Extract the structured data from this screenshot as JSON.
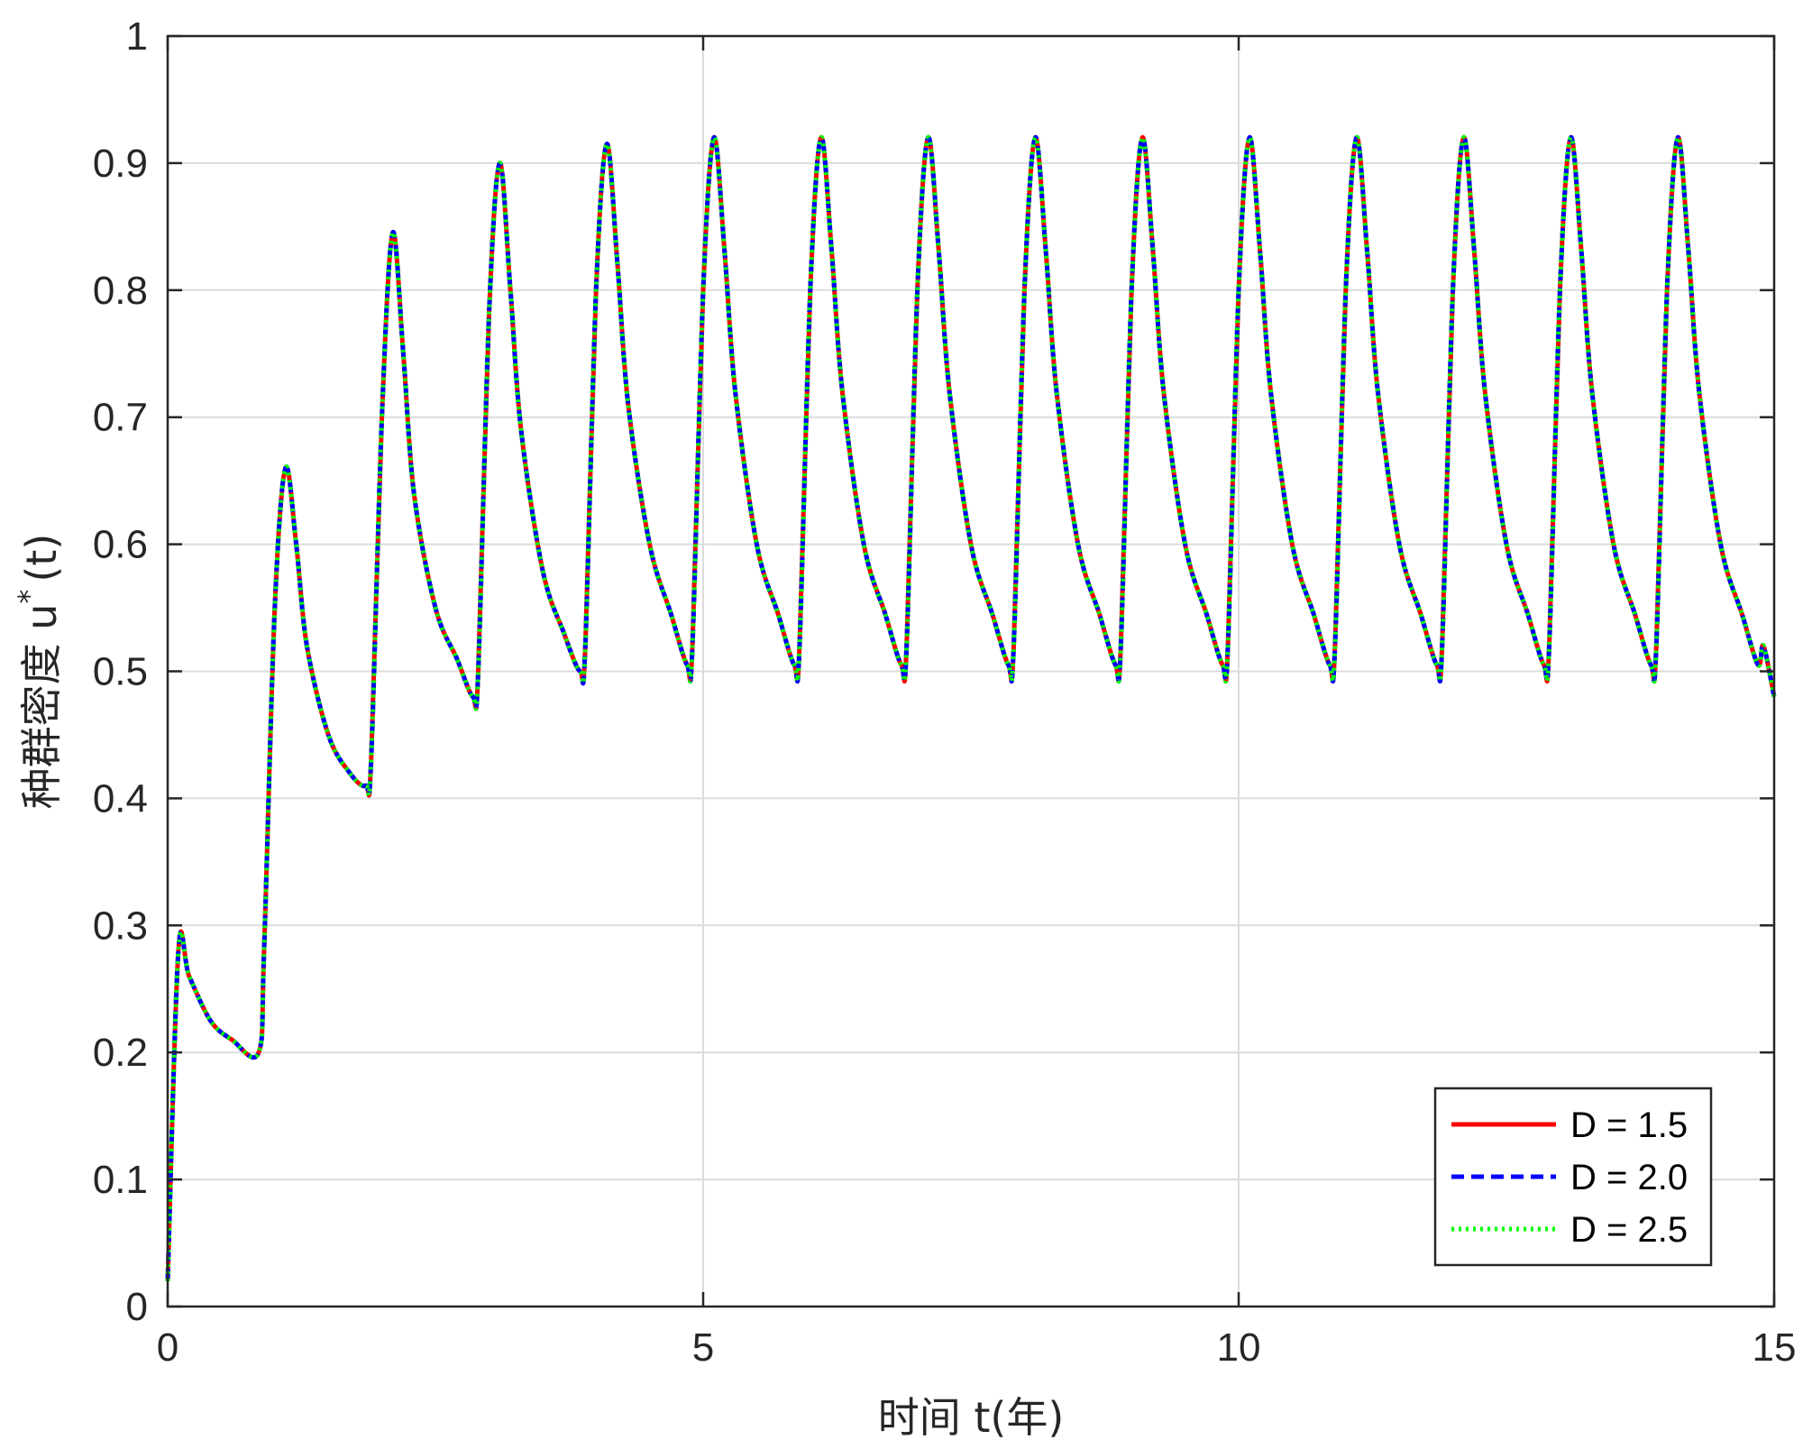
{
  "chart_data": {
    "type": "line",
    "xlabel": "时间 t(年)",
    "ylabel": "种群密度 u",
    "ylabel_superscript": "*",
    "ylabel_suffix": "(t)",
    "xlim": [
      0,
      15
    ],
    "ylim": [
      0,
      1
    ],
    "x_ticks": [
      0,
      5,
      10,
      15
    ],
    "y_ticks": [
      0,
      0.1,
      0.2,
      0.3,
      0.4,
      0.5,
      0.6,
      0.7,
      0.8,
      0.9,
      1
    ],
    "grid": true,
    "legend_position": "bottom-right",
    "x": [
      0.0,
      0.1,
      0.2,
      0.4,
      0.6,
      0.85,
      0.9,
      1.0,
      1.1,
      1.2,
      1.3,
      1.5,
      1.7,
      1.85,
      1.9,
      2.0,
      2.1,
      2.2,
      2.3,
      2.5,
      2.7,
      2.85,
      2.9,
      3.0,
      3.1,
      3.2,
      3.3,
      3.5,
      3.7,
      3.85,
      3.9,
      4.0,
      4.1,
      4.2,
      4.3,
      4.5,
      4.7,
      4.85,
      4.9,
      5.0,
      5.1,
      5.2,
      5.3,
      5.5,
      5.7,
      5.85,
      5.9,
      6.0,
      6.1,
      6.2,
      6.3,
      6.5,
      6.7,
      6.85,
      6.9,
      7.0,
      7.1,
      7.2,
      7.3,
      7.5,
      7.7,
      7.85,
      7.9,
      8.0,
      8.1,
      8.2,
      8.3,
      8.5,
      8.7,
      8.85,
      8.9,
      9.0,
      9.1,
      9.2,
      9.3,
      9.5,
      9.7,
      9.85,
      9.9,
      10.0,
      10.1,
      10.2,
      10.3,
      10.5,
      10.7,
      10.85,
      10.9,
      11.0,
      11.1,
      11.2,
      11.3,
      11.5,
      11.7,
      11.85,
      11.9,
      12.0,
      12.1,
      12.2,
      12.3,
      12.5,
      12.7,
      12.85,
      12.9,
      13.0,
      13.1,
      13.2,
      13.3,
      13.5,
      13.7,
      13.85,
      13.9,
      14.0,
      14.1,
      14.2,
      14.3,
      14.5,
      14.7,
      14.85,
      14.9,
      15.0
    ],
    "series": [
      {
        "name": "D = 1.5",
        "color": "#ff0000",
        "style": "solid"
      },
      {
        "name": "D = 2.0",
        "color": "#0000ff",
        "style": "dashed"
      },
      {
        "name": "D = 2.5",
        "color": "#00ff00",
        "style": "dotted"
      }
    ],
    "y": [
      0.02,
      0.28,
      0.26,
      0.225,
      0.21,
      0.2,
      0.28,
      0.55,
      0.66,
      0.6,
      0.52,
      0.45,
      0.42,
      0.41,
      0.43,
      0.7,
      0.845,
      0.75,
      0.64,
      0.55,
      0.51,
      0.48,
      0.5,
      0.78,
      0.9,
      0.8,
      0.69,
      0.58,
      0.53,
      0.5,
      0.52,
      0.8,
      0.915,
      0.82,
      0.71,
      0.6,
      0.545,
      0.505,
      0.52,
      0.8,
      0.92,
      0.83,
      0.72,
      0.6,
      0.545,
      0.505,
      0.52,
      0.8,
      0.92,
      0.83,
      0.72,
      0.6,
      0.545,
      0.505,
      0.52,
      0.8,
      0.92,
      0.83,
      0.72,
      0.6,
      0.545,
      0.505,
      0.52,
      0.8,
      0.92,
      0.83,
      0.72,
      0.6,
      0.545,
      0.505,
      0.52,
      0.8,
      0.92,
      0.83,
      0.72,
      0.6,
      0.545,
      0.505,
      0.52,
      0.8,
      0.92,
      0.83,
      0.72,
      0.6,
      0.545,
      0.505,
      0.52,
      0.8,
      0.92,
      0.83,
      0.72,
      0.6,
      0.545,
      0.505,
      0.52,
      0.8,
      0.92,
      0.83,
      0.72,
      0.6,
      0.545,
      0.505,
      0.52,
      0.8,
      0.92,
      0.83,
      0.72,
      0.6,
      0.545,
      0.505,
      0.52,
      0.8,
      0.92,
      0.83,
      0.72,
      0.6,
      0.545,
      0.505,
      0.52,
      0.48
    ]
  }
}
